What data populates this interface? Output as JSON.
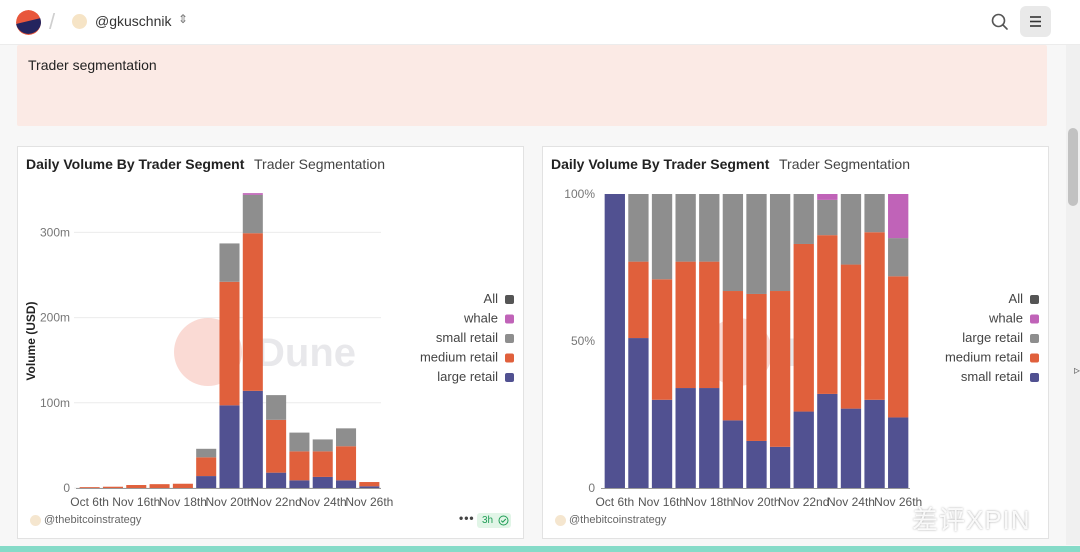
{
  "header": {
    "username": "@gkuschnik"
  },
  "banner": {
    "title": "Trader segmentation"
  },
  "panels": [
    {
      "title": "Daily Volume By Trader Segment",
      "subtitle": "Trader Segmentation",
      "author": "@thebitcoinstrategy",
      "more_label": "•••",
      "age": "3h"
    },
    {
      "title": "Daily Volume By Trader Segment",
      "subtitle": "Trader Segmentation",
      "author": "@thebitcoinstrategy"
    }
  ],
  "watermark_text": "差评XPIN",
  "chart_data": [
    {
      "type": "bar",
      "stacked": true,
      "title": "Daily Volume By Trader Segment",
      "ylabel": "Volume (USD)",
      "ylim": [
        0,
        345000000
      ],
      "yticks": [
        0,
        100000000,
        200000000,
        300000000
      ],
      "ytick_labels": [
        "0",
        "100m",
        "200m",
        "300m"
      ],
      "xtick_labels": [
        "Oct 6th",
        "Nov 16th",
        "Nov 18th",
        "Nov 20th",
        "Nov 22nd",
        "Nov 24th",
        "Nov 26th"
      ],
      "grid": true,
      "legend_position": "right",
      "legend": [
        "All",
        "whale",
        "small retail",
        "medium retail",
        "large retail"
      ],
      "colors": {
        "All": "#555555",
        "whale": "#c063b8",
        "small retail": "#8e8e8e",
        "medium retail": "#e0603c",
        "large retail": "#515191"
      },
      "bar_count": 13,
      "series": [
        {
          "name": "large retail",
          "values": [
            0,
            0,
            0,
            0,
            0,
            14000000,
            97000000,
            114000000,
            18000000,
            9000000,
            13000000,
            9000000,
            2000000
          ]
        },
        {
          "name": "medium retail",
          "values": [
            1000000,
            1500000,
            3500000,
            4500000,
            5000000,
            22000000,
            145000000,
            185000000,
            62000000,
            34000000,
            30000000,
            40000000,
            5000000
          ]
        },
        {
          "name": "small retail",
          "values": [
            0,
            0,
            0,
            0,
            0,
            10000000,
            45000000,
            45000000,
            29000000,
            22000000,
            14000000,
            21000000,
            0
          ]
        },
        {
          "name": "whale",
          "values": [
            0,
            0,
            0,
            0,
            0,
            0,
            0,
            2000000,
            0,
            0,
            0,
            0,
            0
          ]
        }
      ]
    },
    {
      "type": "bar",
      "stacked": true,
      "normalized": true,
      "title": "Daily Volume By Trader Segment",
      "ylim": [
        0,
        100
      ],
      "yticks": [
        0,
        50,
        100
      ],
      "ytick_labels": [
        "0",
        "50%",
        "100%"
      ],
      "xtick_labels": [
        "Oct 6th",
        "Nov 16th",
        "Nov 18th",
        "Nov 20th",
        "Nov 22nd",
        "Nov 24th",
        "Nov 26th"
      ],
      "grid": false,
      "legend_position": "right",
      "legend": [
        "All",
        "whale",
        "large retail",
        "medium retail",
        "small retail"
      ],
      "colors": {
        "All": "#555555",
        "whale": "#c063b8",
        "large retail": "#8e8e8e",
        "medium retail": "#e0603c",
        "small retail": "#515191"
      },
      "bar_count": 13,
      "series": [
        {
          "name": "small retail",
          "values": [
            100,
            51,
            30,
            34,
            34,
            23,
            16,
            14,
            26,
            32,
            27,
            30,
            24
          ]
        },
        {
          "name": "medium retail",
          "values": [
            0,
            26,
            41,
            43,
            43,
            44,
            50,
            53,
            57,
            54,
            49,
            57,
            48
          ]
        },
        {
          "name": "large retail",
          "values": [
            0,
            23,
            29,
            23,
            23,
            33,
            34,
            33,
            17,
            12,
            24,
            13,
            13
          ]
        },
        {
          "name": "whale",
          "values": [
            0,
            0,
            0,
            0,
            0,
            0,
            0,
            0,
            0,
            2,
            0,
            0,
            15
          ]
        }
      ]
    }
  ]
}
